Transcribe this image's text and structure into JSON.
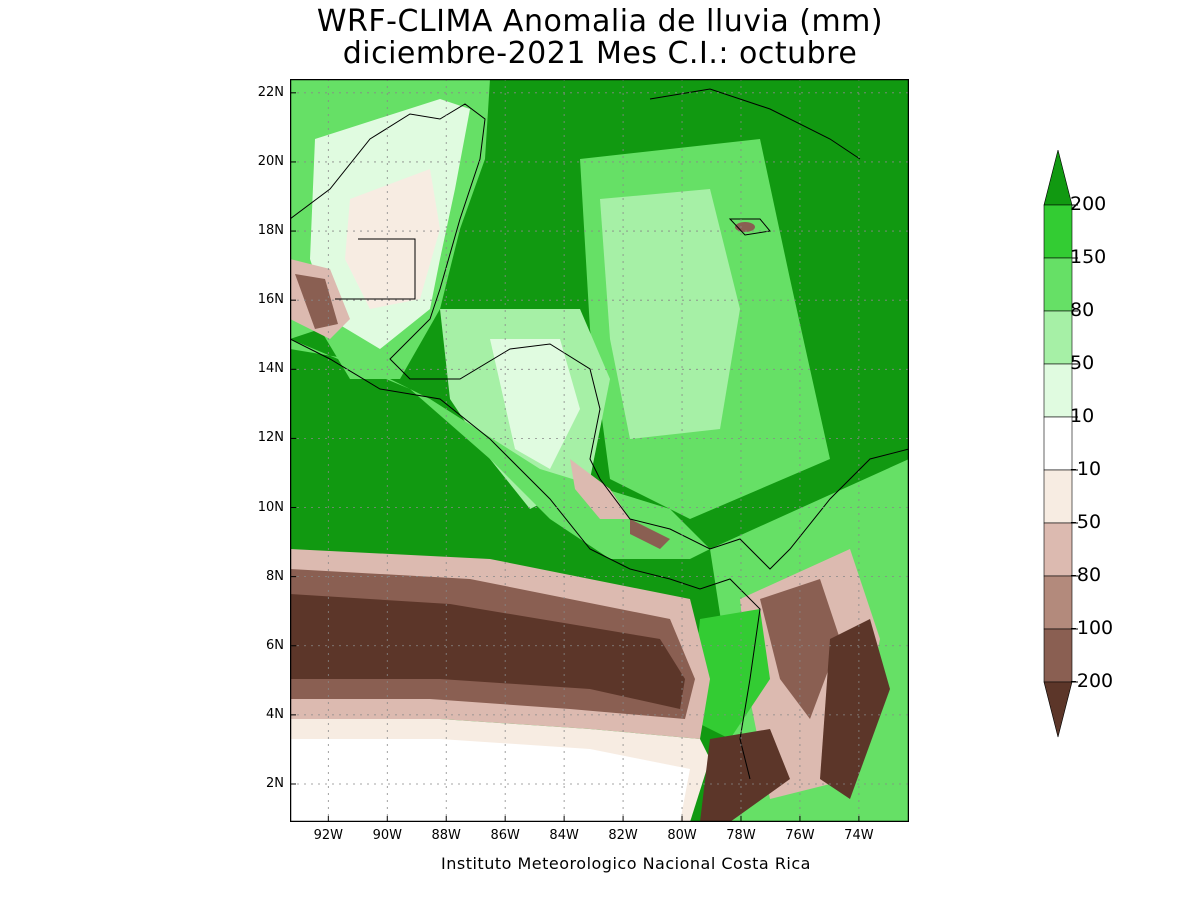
{
  "title": {
    "line1": "WRF-CLIMA Anomalia de lluvia (mm)",
    "line2": "diciembre-2021 Mes C.I.: octubre"
  },
  "credit": "Instituto Meteorologico Nacional Costa Rica",
  "map": {
    "lon_range": [
      -93.3,
      -72.3
    ],
    "lat_range": [
      0.9,
      22.4
    ],
    "grid": true,
    "lat_ticks": [
      {
        "value": 22,
        "label": "22N"
      },
      {
        "value": 20,
        "label": "20N"
      },
      {
        "value": 18,
        "label": "18N"
      },
      {
        "value": 16,
        "label": "16N"
      },
      {
        "value": 14,
        "label": "14N"
      },
      {
        "value": 12,
        "label": "12N"
      },
      {
        "value": 10,
        "label": "10N"
      },
      {
        "value": 8,
        "label": "8N"
      },
      {
        "value": 6,
        "label": "6N"
      },
      {
        "value": 4,
        "label": "4N"
      },
      {
        "value": 2,
        "label": "2N"
      }
    ],
    "lon_ticks": [
      {
        "value": -92,
        "label": "92W"
      },
      {
        "value": -90,
        "label": "90W"
      },
      {
        "value": -88,
        "label": "88W"
      },
      {
        "value": -86,
        "label": "86W"
      },
      {
        "value": -84,
        "label": "84W"
      },
      {
        "value": -82,
        "label": "82W"
      },
      {
        "value": -80,
        "label": "80W"
      },
      {
        "value": -78,
        "label": "78W"
      },
      {
        "value": -76,
        "label": "76W"
      },
      {
        "value": -74,
        "label": "74W"
      }
    ]
  },
  "legend": {
    "labels": [
      "200",
      "150",
      "80",
      "50",
      "10",
      "-10",
      "-50",
      "-80",
      "-100",
      "-200"
    ],
    "colors": [
      "#119911",
      "#33cc33",
      "#66e066",
      "#a6f0a6",
      "#e0fbe0",
      "#ffffff",
      "#f7ece2",
      "#dcbab0",
      "#b38a7c",
      "#8a5f52",
      "#5c3629"
    ]
  }
}
